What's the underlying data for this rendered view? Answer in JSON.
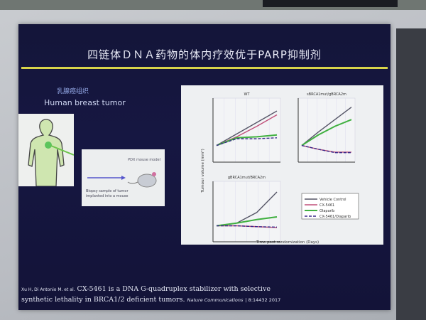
{
  "slide": {
    "title": "四链体ＤＮＡ药物的体内疗效优于PARP抑制剂",
    "tissue_label_cn": "乳腺癌组织",
    "tissue_label_en": "Human breast tumor",
    "pdx_label": "PDX mouse model",
    "biopsy_caption_1": "Biopsy sample of tumor",
    "biopsy_caption_2": "implanted into a mouse",
    "accent_color": "#d9d44a",
    "background_color": "#151640"
  },
  "figure": {
    "ylabel": "Tumour volume (mm³)",
    "xlabel": "Time post randomization (Days)",
    "panels": [
      {
        "title": "WT",
        "series": [
          [
            1,
            2.2,
            3.4,
            4.6
          ],
          [
            1,
            1.9,
            3.0,
            4.2
          ],
          [
            1,
            1.8,
            1.9,
            2.1
          ],
          [
            1,
            1.7,
            1.7,
            1.8
          ]
        ]
      },
      {
        "title": "sBRCA1mut/gBRCA2m",
        "series": [
          [
            1,
            2.4,
            3.7,
            5.0
          ],
          [
            1,
            0.6,
            0.3,
            0.3
          ],
          [
            1,
            2.1,
            3.0,
            3.7
          ],
          [
            1,
            0.6,
            0.25,
            0.25
          ]
        ]
      },
      {
        "title": "gBRCA1mut/BRCA2m",
        "series": [
          [
            1,
            1.3,
            2.5,
            4.8
          ],
          [
            1,
            1.0,
            0.9,
            0.8
          ],
          [
            1,
            1.3,
            1.7,
            2.0
          ],
          [
            1,
            1.0,
            0.9,
            0.85
          ]
        ]
      }
    ],
    "legend": [
      {
        "label": "Vehicle Control",
        "color": "#555566"
      },
      {
        "label": "CX-5461",
        "color": "#c0507a"
      },
      {
        "label": "Olaparib",
        "color": "#40b040"
      },
      {
        "label": "CX-5461/Olaparib",
        "color": "#3a2a8a"
      }
    ]
  },
  "reference": {
    "authors": "Xu H, Di Antonio M. et al.",
    "title_1": "CX-5461 is a DNA G-quadruplex stabilizer with selective",
    "title_2": "synthetic lethality in BRCA1/2 deficient tumors.",
    "journal": "Nature Communications",
    "citation": "| 8:14432 2017"
  }
}
